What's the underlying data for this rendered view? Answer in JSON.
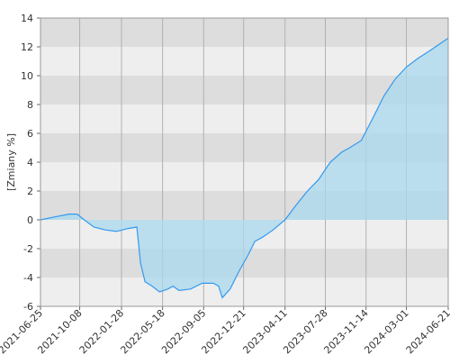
{
  "chart_data": {
    "type": "area",
    "y_label": "[Zmiany %]",
    "x": [
      "2021-06-25",
      "2021-08-01",
      "2021-09-10",
      "2021-10-01",
      "2021-10-20",
      "2021-11-15",
      "2021-12-15",
      "2022-01-15",
      "2022-02-15",
      "2022-03-10",
      "2022-03-20",
      "2022-04-01",
      "2022-04-20",
      "2022-05-10",
      "2022-06-01",
      "2022-06-15",
      "2022-07-01",
      "2022-08-01",
      "2022-09-01",
      "2022-10-01",
      "2022-10-15",
      "2022-10-25",
      "2022-11-15",
      "2022-12-10",
      "2023-01-01",
      "2023-01-20",
      "2023-02-10",
      "2023-03-10",
      "2023-04-11",
      "2023-05-10",
      "2023-06-10",
      "2023-07-10",
      "2023-08-10",
      "2023-09-10",
      "2023-10-01",
      "2023-11-01",
      "2023-12-01",
      "2024-01-01",
      "2024-02-01",
      "2024-03-01",
      "2024-04-01",
      "2024-05-01",
      "2024-06-21"
    ],
    "series": [
      {
        "color": "#3399ee",
        "fill": "#a8d8ee",
        "values": [
          0,
          0.2,
          0.4,
          0.4,
          0,
          -0.5,
          -0.7,
          -0.8,
          -0.6,
          -0.5,
          -3.0,
          -4.3,
          -4.6,
          -5.0,
          -4.8,
          -4.6,
          -4.9,
          -4.8,
          -4.4,
          -4.4,
          -4.6,
          -5.4,
          -4.8,
          -3.5,
          -2.5,
          -1.5,
          -1.2,
          -0.7,
          0,
          1.0,
          2.0,
          2.8,
          4.0,
          4.7,
          5.0,
          5.5,
          7.0,
          8.6,
          9.8,
          10.6,
          11.2,
          11.7,
          12.6
        ]
      }
    ],
    "xlim": [
      "2021-06-25",
      "2024-06-21"
    ],
    "xticks": [
      "2021-06-25",
      "2021-10-08",
      "2022-01-28",
      "2022-05-18",
      "2022-09-05",
      "2022-12-21",
      "2023-04-11",
      "2023-07-28",
      "2023-11-14",
      "2024-03-01",
      "2024-06-21"
    ],
    "ylim": [
      -6,
      14
    ],
    "yticks": [
      -6,
      -4,
      -2,
      0,
      2,
      4,
      6,
      8,
      10,
      12,
      14
    ],
    "band_colors": [
      "#eeeeee",
      "#dddddd"
    ],
    "grid_color": "#b0b0b0"
  }
}
